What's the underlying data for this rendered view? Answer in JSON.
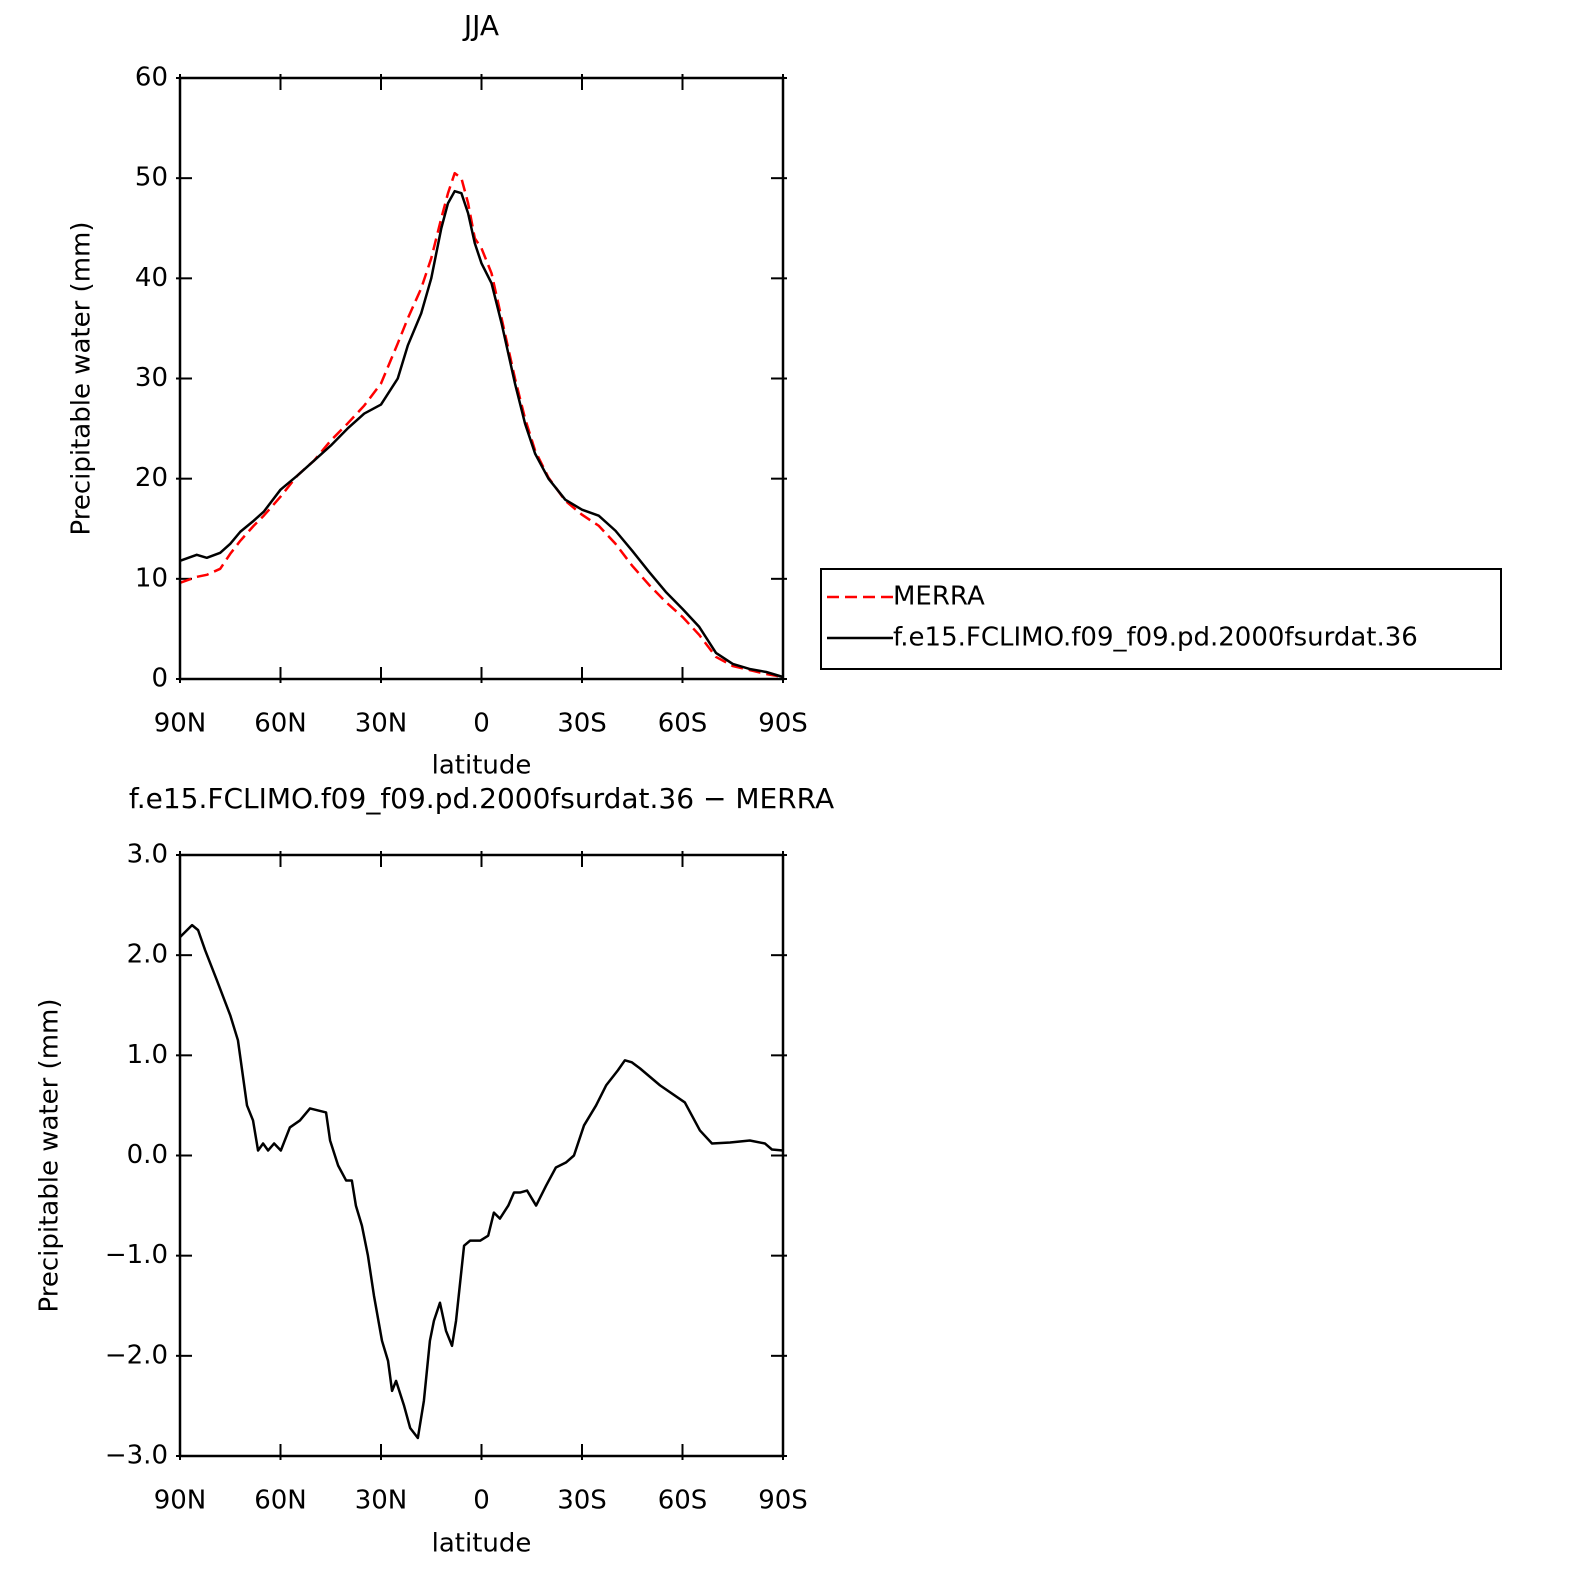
{
  "chart_data": [
    {
      "type": "line",
      "title": "JJA",
      "xlabel": "latitude",
      "ylabel": "Precipitable water (mm)",
      "x": [
        90,
        85,
        82,
        78,
        75,
        72,
        68,
        65,
        60,
        55,
        50,
        45,
        40,
        35,
        30,
        25,
        22,
        18,
        15,
        12,
        10,
        8,
        6,
        4,
        2,
        0,
        -3,
        -6,
        -10,
        -13,
        -16,
        -20,
        -25,
        -30,
        -35,
        -40,
        -45,
        -50,
        -55,
        -60,
        -65,
        -70,
        -75,
        -80,
        -85,
        -90
      ],
      "series": [
        {
          "name": "MERRA",
          "color": "#ff0000",
          "dashed": true,
          "values": [
            9.6,
            10.2,
            10.4,
            11.0,
            12.5,
            13.8,
            15.3,
            16.3,
            18.2,
            20.3,
            21.8,
            23.8,
            25.5,
            27.3,
            29.5,
            33.5,
            36.0,
            39.0,
            42.0,
            46.0,
            48.5,
            50.5,
            50.0,
            47.5,
            44.0,
            43.0,
            40.5,
            36.0,
            30.0,
            26.0,
            22.8,
            20.1,
            17.8,
            16.4,
            15.3,
            13.5,
            11.3,
            9.4,
            7.7,
            6.2,
            4.4,
            2.2,
            1.3,
            0.9,
            0.5,
            0.2
          ]
        },
        {
          "name": "f.e15.FCLIMO.f09_f09.pd.2000fsurdat.36",
          "color": "#000000",
          "dashed": false,
          "values": [
            11.8,
            12.4,
            12.1,
            12.6,
            13.5,
            14.7,
            15.8,
            16.7,
            18.9,
            20.3,
            21.8,
            23.3,
            25.0,
            26.5,
            27.4,
            30.0,
            33.3,
            36.5,
            40.0,
            45.0,
            47.5,
            48.7,
            48.5,
            46.5,
            43.5,
            41.5,
            39.5,
            35.5,
            29.5,
            25.5,
            22.5,
            20.0,
            17.9,
            16.9,
            16.3,
            14.8,
            12.8,
            10.7,
            8.7,
            7.0,
            5.2,
            2.6,
            1.5,
            1.0,
            0.7,
            0.2
          ]
        }
      ],
      "xlim": [
        90,
        -90
      ],
      "xticks": [
        {
          "value": 90,
          "label": "90N"
        },
        {
          "value": 60,
          "label": "60N"
        },
        {
          "value": 30,
          "label": "30N"
        },
        0,
        {
          "value": -30,
          "label": "30S"
        },
        {
          "value": -60,
          "label": "60S"
        },
        {
          "value": -90,
          "label": "90S"
        }
      ],
      "ylim": [
        0,
        60
      ],
      "yticks": [
        0,
        10,
        20,
        30,
        40,
        50,
        60
      ],
      "legend": "right"
    },
    {
      "type": "line",
      "title": "f.e15.FCLIMO.f09_f09.pd.2000fsurdat.36 − MERRA",
      "xlabel": "latitude",
      "ylabel": "Precipitable water (mm)",
      "x": [
        90,
        86.4,
        84.6,
        82.5,
        79,
        75,
        72.7,
        70,
        68.2,
        66.7,
        65.2,
        63.7,
        61.9,
        59.9,
        57.2,
        54.2,
        51.2,
        48.8,
        46.4,
        45.2,
        42.8,
        40.4,
        38.7,
        37.5,
        35.7,
        33.9,
        32.1,
        29.7,
        27.9,
        26.7,
        25.5,
        23.1,
        21.3,
        19,
        17.2,
        15.4,
        14.2,
        12.4,
        10.6,
        8.8,
        7.6,
        5.2,
        3.4,
        0.4,
        -2,
        -3.7,
        -5.5,
        -8,
        -9.7,
        -11.5,
        -13.6,
        -16.3,
        -19.3,
        -22.2,
        -25.2,
        -27.6,
        -30.6,
        -34.2,
        -37.2,
        -40.7,
        -42.8,
        -44.9,
        -47.3,
        -53.3,
        -60.7,
        -65.2,
        -68.8,
        -74.2,
        -80.1,
        -84.6,
        -86.7,
        -90
      ],
      "values": [
        2.18,
        2.3,
        2.25,
        2.05,
        1.75,
        1.4,
        1.15,
        0.5,
        0.35,
        0.05,
        0.12,
        0.05,
        0.12,
        0.05,
        0.28,
        0.35,
        0.47,
        0.45,
        0.43,
        0.15,
        -0.1,
        -0.25,
        -0.25,
        -0.5,
        -0.7,
        -1.0,
        -1.4,
        -1.85,
        -2.05,
        -2.35,
        -2.25,
        -2.5,
        -2.72,
        -2.82,
        -2.45,
        -1.85,
        -1.65,
        -1.47,
        -1.75,
        -1.9,
        -1.65,
        -0.9,
        -0.85,
        -0.85,
        -0.8,
        -0.57,
        -0.63,
        -0.5,
        -0.37,
        -0.37,
        -0.35,
        -0.5,
        -0.3,
        -0.12,
        -0.07,
        0.0,
        0.3,
        0.5,
        0.7,
        0.85,
        0.95,
        0.93,
        0.87,
        0.7,
        0.53,
        0.25,
        0.12,
        0.13,
        0.15,
        0.12,
        0.06,
        0.05
      ],
      "color": "#000000",
      "xlim": [
        90,
        -90
      ],
      "xticks": [
        {
          "value": 90,
          "label": "90N"
        },
        {
          "value": 60,
          "label": "60N"
        },
        {
          "value": 30,
          "label": "30N"
        },
        0,
        {
          "value": -30,
          "label": "30S"
        },
        {
          "value": -60,
          "label": "60S"
        },
        {
          "value": -90,
          "label": "90S"
        }
      ],
      "ylim": [
        -3,
        3
      ],
      "yticks": [
        {
          "value": -3,
          "label": "−3.0"
        },
        {
          "value": -2,
          "label": "−2.0"
        },
        {
          "value": -1,
          "label": "−1.0"
        },
        {
          "value": 0,
          "label": "0.0"
        },
        {
          "value": 1,
          "label": "1.0"
        },
        {
          "value": 2,
          "label": "2.0"
        },
        {
          "value": 3,
          "label": "3.0"
        }
      ]
    }
  ]
}
